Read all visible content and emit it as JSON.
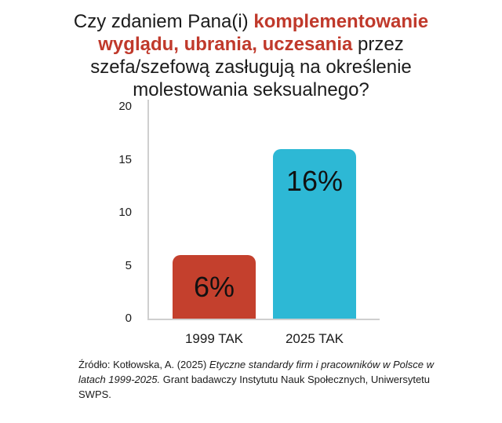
{
  "title": {
    "prefix": "Czy zdaniem Pana(i) ",
    "highlight": "komplementowanie wyglądu, ubrania, uczesania",
    "suffix": " przez szefa/szefową zasługują na określenie molestowania seksualnego?",
    "highlight_color": "#c0392b"
  },
  "chart_data": {
    "type": "bar",
    "title": "Czy zdaniem Pana(i) komplementowanie wyglądu, ubrania, uczesania przez szefa/szefową zasługują na określenie molestowania seksualnego?",
    "categories": [
      "1999 TAK",
      "2025 TAK"
    ],
    "values": [
      6,
      16
    ],
    "bar_labels": [
      "6%",
      "16%"
    ],
    "bar_colors": [
      "#c4402d",
      "#2db8d5"
    ],
    "xlabel": "",
    "ylabel": "",
    "ylim": [
      0,
      20
    ],
    "yticks": [
      0,
      5,
      10,
      15,
      20
    ],
    "grid": false,
    "legend": false,
    "axis_color": "#cfcfcf",
    "text_color": "#1b1b1b"
  },
  "source": {
    "part1": "Źródło: Kotłowska, A. (2025) ",
    "italic": "Etyczne standardy firm i pracowników w Polsce w latach 1999-2025.",
    "part2": " Grant badawczy Instytutu Nauk Społecznych, Uniwersytetu SWPS."
  }
}
